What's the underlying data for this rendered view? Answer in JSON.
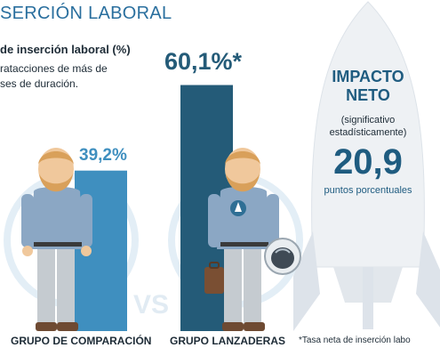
{
  "header": {
    "title": "SERCIÓN LABORAL"
  },
  "legend": {
    "title": "de inserción laboral (%)",
    "lines": [
      "ratacciones de más de",
      "ses de duración."
    ]
  },
  "impact": {
    "title_line1": "IMPACTO",
    "title_line2": "NETO",
    "note_line1": "(significativo",
    "note_line2": "estadísticamente)",
    "value": "20,9",
    "unit": "puntos porcentuales"
  },
  "footnote": "*Tasa neta de inserción labo",
  "chart_data": {
    "type": "bar",
    "title": "",
    "xlabel": "",
    "ylabel": "",
    "ylim": [
      0,
      70
    ],
    "categories": [
      "GRUPO DE COMPARACIÓN",
      "GRUPO LANZADERAS"
    ],
    "values": [
      39.2,
      60.1
    ],
    "value_labels": [
      "39,2%",
      "60,1%*"
    ],
    "colors": [
      "#3f8fbf",
      "#245b78"
    ],
    "grid": false
  },
  "colors": {
    "title": "#2a6f9e",
    "impact": "#1f5c80",
    "text": "#1d2b36",
    "rocket": "#eef1f4"
  },
  "icons": [
    "person-icon",
    "astronaut-icon",
    "briefcase-icon",
    "helmet-icon",
    "rocket-icon"
  ],
  "vs_text": "VS"
}
